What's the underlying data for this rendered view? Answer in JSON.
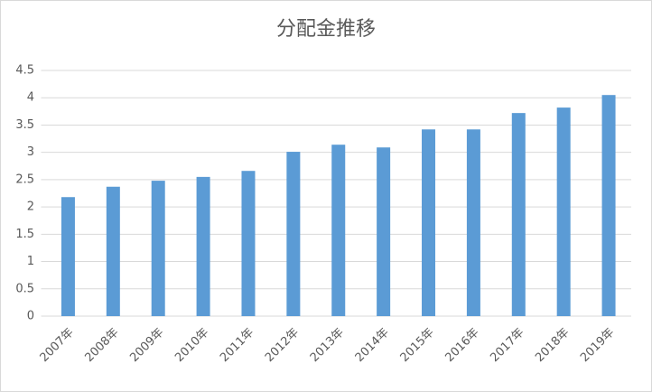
{
  "chart_data": {
    "type": "bar",
    "title": "分配金推移",
    "categories": [
      "2007年",
      "2008年",
      "2009年",
      "2010年",
      "2011年",
      "2012年",
      "2013年",
      "2014年",
      "2015年",
      "2016年",
      "2017年",
      "2018年",
      "2019年"
    ],
    "values": [
      2.18,
      2.37,
      2.48,
      2.55,
      2.66,
      3.01,
      3.14,
      3.09,
      3.42,
      3.42,
      3.72,
      3.82,
      4.05
    ],
    "color": "#5b9bd5",
    "ylim": [
      0,
      4.5
    ],
    "yticks": [
      0,
      0.5,
      1,
      1.5,
      2,
      2.5,
      3,
      3.5,
      4,
      4.5
    ],
    "grid": true
  }
}
